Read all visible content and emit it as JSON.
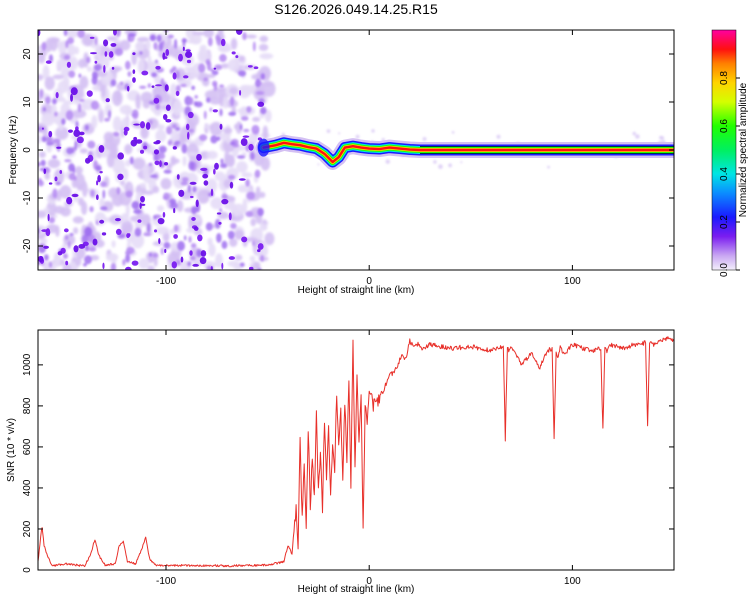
{
  "title": "S126.2026.049.14.25.R15",
  "chart_data": [
    {
      "type": "heatmap",
      "xlabel": "Height of straight line (km)",
      "ylabel": "Frequency (Hz)",
      "xlim": [
        -163,
        150
      ],
      "ylim": [
        -25,
        25
      ],
      "xticks": [
        -100,
        0,
        100
      ],
      "yticks": [
        -20,
        -10,
        0,
        10,
        20
      ],
      "noise_region_x": [
        -163,
        -52
      ],
      "signal_track": {
        "x": [
          -52,
          -46,
          -42,
          -38,
          -34,
          -30,
          -26,
          -22,
          -18,
          -15,
          -12,
          -8,
          -4,
          0,
          5,
          10,
          15,
          20,
          25,
          40,
          60,
          80,
          100,
          120,
          150
        ],
        "freq": [
          0.5,
          1.0,
          1.5,
          1.2,
          1.0,
          0.6,
          0.3,
          -0.8,
          -2.5,
          -1.5,
          0.5,
          0.8,
          0.5,
          0.3,
          0.2,
          0.5,
          0.3,
          0.1,
          0.0,
          0.0,
          0.0,
          0.0,
          0.0,
          0.0,
          0.0
        ]
      },
      "colorbar": {
        "label": "Normalized spectral amplitude",
        "range": [
          0.0,
          1.0
        ],
        "ticks": [
          "0.0",
          "0.2",
          "0.4",
          "0.6",
          "0.8"
        ]
      }
    },
    {
      "type": "line",
      "xlabel": "Height of straight line (km)",
      "ylabel": "SNR (10 * v/v)",
      "xlim": [
        -163,
        150
      ],
      "ylim": [
        0,
        1170
      ],
      "xticks": [
        -100,
        0,
        100
      ],
      "yticks": [
        0,
        200,
        400,
        600,
        800,
        1000
      ],
      "series": [
        {
          "name": "SNR",
          "color": "#e8302a",
          "x": [
            -163,
            -161,
            -160,
            -158,
            -156,
            -150,
            -145,
            -140,
            -137,
            -135,
            -133,
            -130,
            -125,
            -123,
            -121,
            -119,
            -115,
            -112,
            -110,
            -108,
            -105,
            -100,
            -90,
            -80,
            -70,
            -60,
            -50,
            -42,
            -40,
            -38,
            -36,
            -35,
            -34,
            -33,
            -32,
            -31,
            -30,
            -29,
            -28,
            -27,
            -26,
            -25,
            -24,
            -23,
            -22,
            -21,
            -20,
            -19,
            -18,
            -17,
            -16,
            -15,
            -14,
            -13,
            -12,
            -11,
            -10,
            -9,
            -8,
            -7,
            -6,
            -5,
            -4,
            -3,
            -2,
            -1,
            0,
            2,
            4,
            6,
            8,
            10,
            12,
            14,
            16,
            18,
            20,
            22,
            24,
            26,
            30,
            40,
            50,
            60,
            66,
            67,
            68,
            69,
            70,
            75,
            80,
            84,
            86,
            88,
            90,
            91,
            92,
            93,
            94,
            96,
            100,
            105,
            110,
            114,
            115,
            116,
            117,
            118,
            122,
            126,
            130,
            134,
            136,
            137,
            138,
            140,
            144,
            148,
            150
          ],
          "y": [
            40,
            220,
            120,
            60,
            20,
            30,
            25,
            20,
            80,
            150,
            70,
            25,
            30,
            120,
            140,
            40,
            30,
            100,
            160,
            50,
            25,
            22,
            22,
            22,
            20,
            22,
            25,
            40,
            120,
            80,
            300,
            100,
            640,
            250,
            500,
            200,
            700,
            300,
            560,
            350,
            770,
            380,
            560,
            300,
            720,
            450,
            680,
            380,
            620,
            500,
            860,
            600,
            780,
            450,
            830,
            550,
            930,
            400,
            1130,
            500,
            960,
            600,
            860,
            200,
            820,
            700,
            900,
            800,
            820,
            850,
            900,
            950,
            960,
            1000,
            1050,
            1030,
            1120,
            1080,
            1100,
            1080,
            1100,
            1080,
            1090,
            1070,
            1090,
            630,
            1080,
            1070,
            1090,
            1000,
            1060,
            980,
            1040,
            1070,
            1080,
            620,
            1060,
            1030,
            1090,
            1050,
            1100,
            1080,
            1070,
            1080,
            670,
            1090,
            1060,
            1100,
            1090,
            1080,
            1100,
            1100,
            1110,
            680,
            1110,
            1100,
            1120,
            1130,
            1120
          ]
        }
      ]
    }
  ]
}
